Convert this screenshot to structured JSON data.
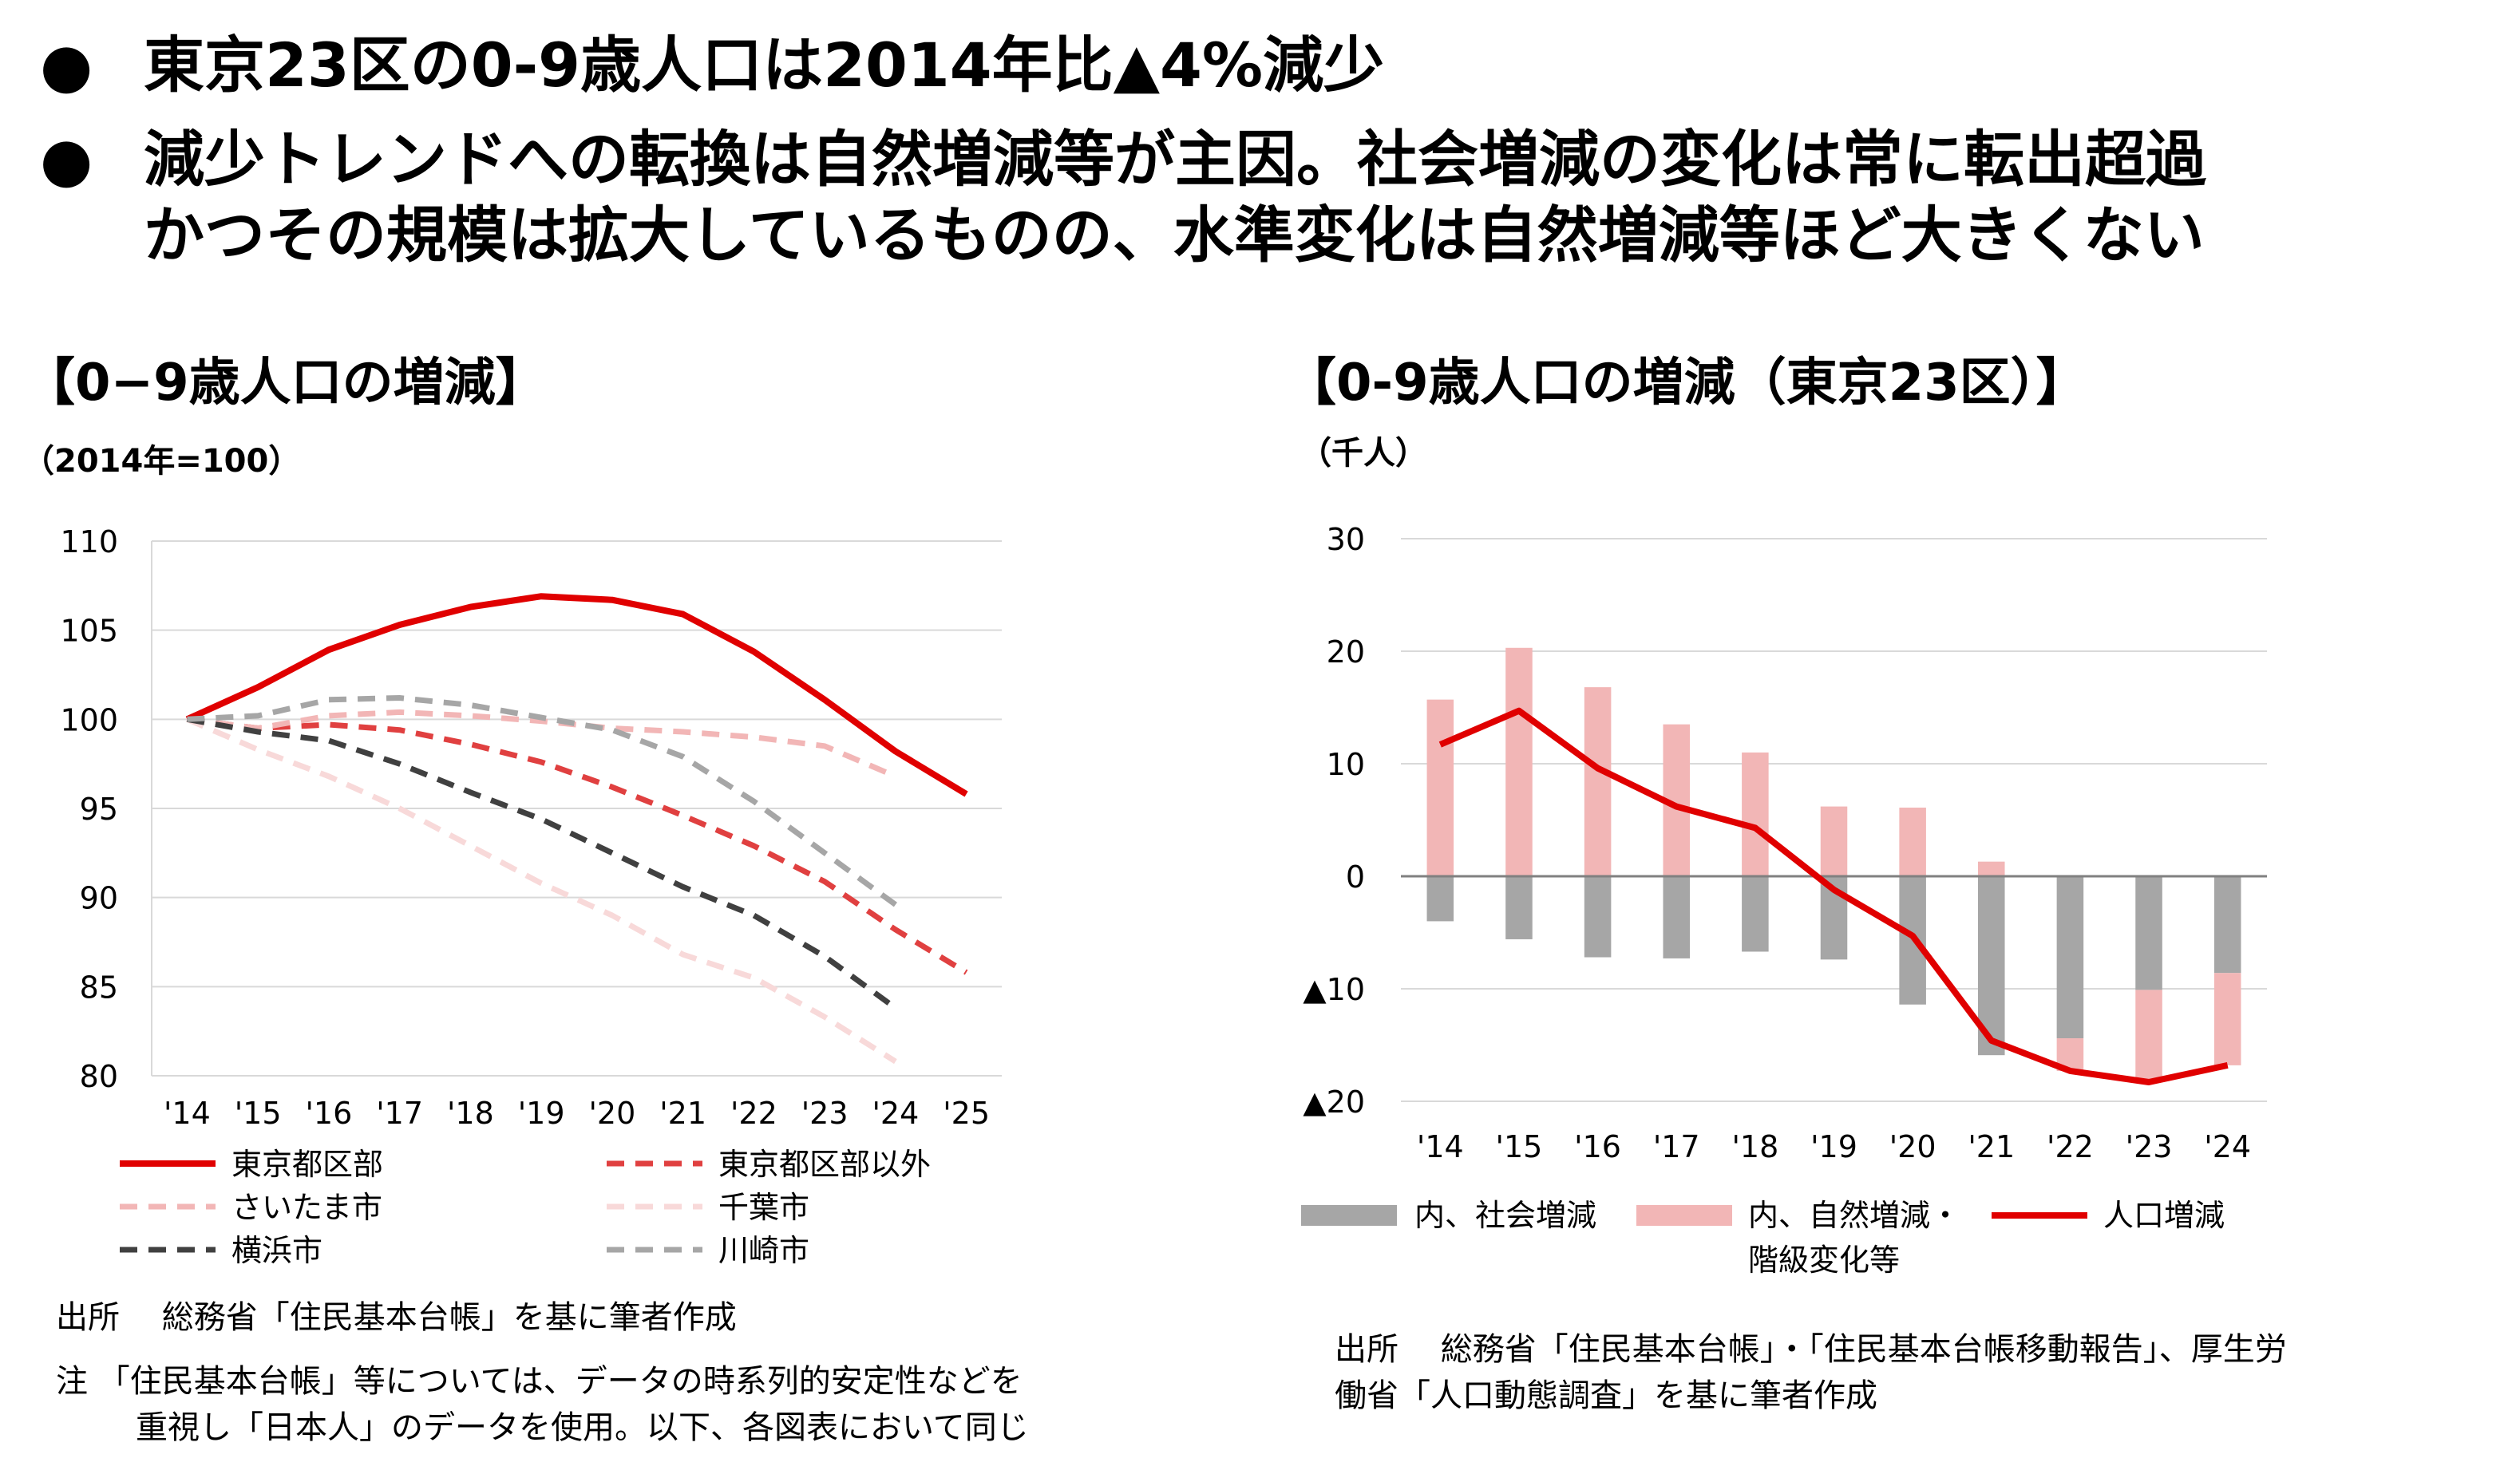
{
  "bullets": [
    {
      "text": "東京23区の0-9歳人口は2014年比▲4%減少"
    },
    {
      "line1": "減少トレンドへの転換は自然増減等が主因。社会増減の変化は常に転出超過",
      "line2": "かつその規模は拡大しているものの、水準変化は自然増減等ほど大きくない"
    }
  ],
  "left_chart": {
    "heading": "【0−9歳人口の増減】",
    "unit": "（2014年=100）",
    "source": "出所　 総務省「住民基本台帳」を基に筆者作成",
    "note1": "注 「住民基本台帳」等については、データの時系列的安定性などを",
    "note2": "重視し「日本人」のデータを使用。以下、各図表において同じ"
  },
  "right_chart": {
    "heading": "【0-9歳人口の増減（東京23区）】",
    "unit": "（千人）",
    "source1": "出所　 総務省「住民基本台帳」・「住民基本台帳移動報告」、厚生労",
    "source2": "働省「人口動態調査」を基に筆者作成"
  },
  "colors": {
    "red": "#e00000",
    "red_dash": "#e04040",
    "pink": "#f2b6b6",
    "pink_light": "#f8d9d9",
    "dark": "#404040",
    "gray": "#a6a6a6"
  },
  "chart_data": [
    {
      "type": "line",
      "title": "0−9歳人口の増減",
      "ylabel": "2014年=100",
      "categories": [
        "'14",
        "'15",
        "'16",
        "'17",
        "'18",
        "'19",
        "'20",
        "'21",
        "'22",
        "'23",
        "'24",
        "'25"
      ],
      "ylim": [
        80,
        110
      ],
      "yticks": [
        80,
        85,
        90,
        95,
        100,
        105,
        110
      ],
      "legend_position": "bottom",
      "series": [
        {
          "name": "東京都区部",
          "color": "#e00000",
          "dash": false,
          "width": 8,
          "values": [
            100,
            101.8,
            103.9,
            105.3,
            106.3,
            106.9,
            106.7,
            105.9,
            103.8,
            101.1,
            98.2,
            95.8
          ]
        },
        {
          "name": "東京都区部以外",
          "color": "#e04040",
          "dash": true,
          "width": 7,
          "values": [
            100,
            99.5,
            99.7,
            99.4,
            98.6,
            97.6,
            96.2,
            94.6,
            92.9,
            90.9,
            88.2,
            85.8
          ]
        },
        {
          "name": "さいたま市",
          "color": "#f2b6b6",
          "dash": true,
          "width": 7,
          "values": [
            100,
            99.5,
            100.2,
            100.4,
            100.2,
            99.9,
            99.5,
            99.3,
            99.0,
            98.5,
            96.8,
            null
          ]
        },
        {
          "name": "千葉市",
          "color": "#f8d9d9",
          "dash": true,
          "width": 7,
          "values": [
            100,
            98.3,
            96.8,
            95.0,
            92.9,
            90.8,
            89.0,
            86.8,
            85.5,
            83.3,
            80.8,
            null
          ]
        },
        {
          "name": "横浜市",
          "color": "#404040",
          "dash": true,
          "width": 7,
          "values": [
            100,
            99.3,
            98.8,
            97.5,
            95.9,
            94.4,
            92.5,
            90.6,
            89.0,
            86.7,
            83.8,
            null
          ]
        },
        {
          "name": "川崎市",
          "color": "#a6a6a6",
          "dash": true,
          "width": 7,
          "values": [
            100,
            100.2,
            101.1,
            101.2,
            100.8,
            100.1,
            99.4,
            97.9,
            95.4,
            92.5,
            89.6,
            null
          ]
        }
      ]
    },
    {
      "type": "bar",
      "title": "0-9歳人口の増減（東京23区）",
      "ylabel": "千人",
      "categories": [
        "'14",
        "'15",
        "'16",
        "'17",
        "'18",
        "'19",
        "'20",
        "'21",
        "'22",
        "'23",
        "'24"
      ],
      "ylim": [
        -20,
        30
      ],
      "yticks": [
        30,
        20,
        10,
        0,
        -10,
        -20
      ],
      "ytick_labels": [
        "30",
        "20",
        "10",
        "0",
        "▲10",
        "▲20"
      ],
      "legend_position": "bottom",
      "series": [
        {
          "name": "内、社会増減",
          "kind": "bar",
          "color": "#a6a6a6",
          "values": [
            -4.0,
            -5.6,
            -7.2,
            -7.3,
            -6.7,
            -7.4,
            -11.4,
            -15.9,
            -14.4,
            -10.1,
            -8.6
          ]
        },
        {
          "name_line1": "内、自然増減・",
          "name_line2": "階級変化等",
          "kind": "bar",
          "color": "#f2b6b6",
          "values": [
            15.7,
            20.3,
            16.8,
            13.5,
            11.0,
            6.2,
            6.1,
            1.3,
            -2.9,
            -8.2,
            -8.2
          ]
        },
        {
          "name": "人口増減",
          "kind": "line",
          "color": "#e00000",
          "values": [
            11.7,
            14.7,
            9.6,
            6.2,
            4.3,
            -1.2,
            -5.3,
            -14.6,
            -17.3,
            -18.3,
            -16.8
          ]
        }
      ]
    }
  ]
}
